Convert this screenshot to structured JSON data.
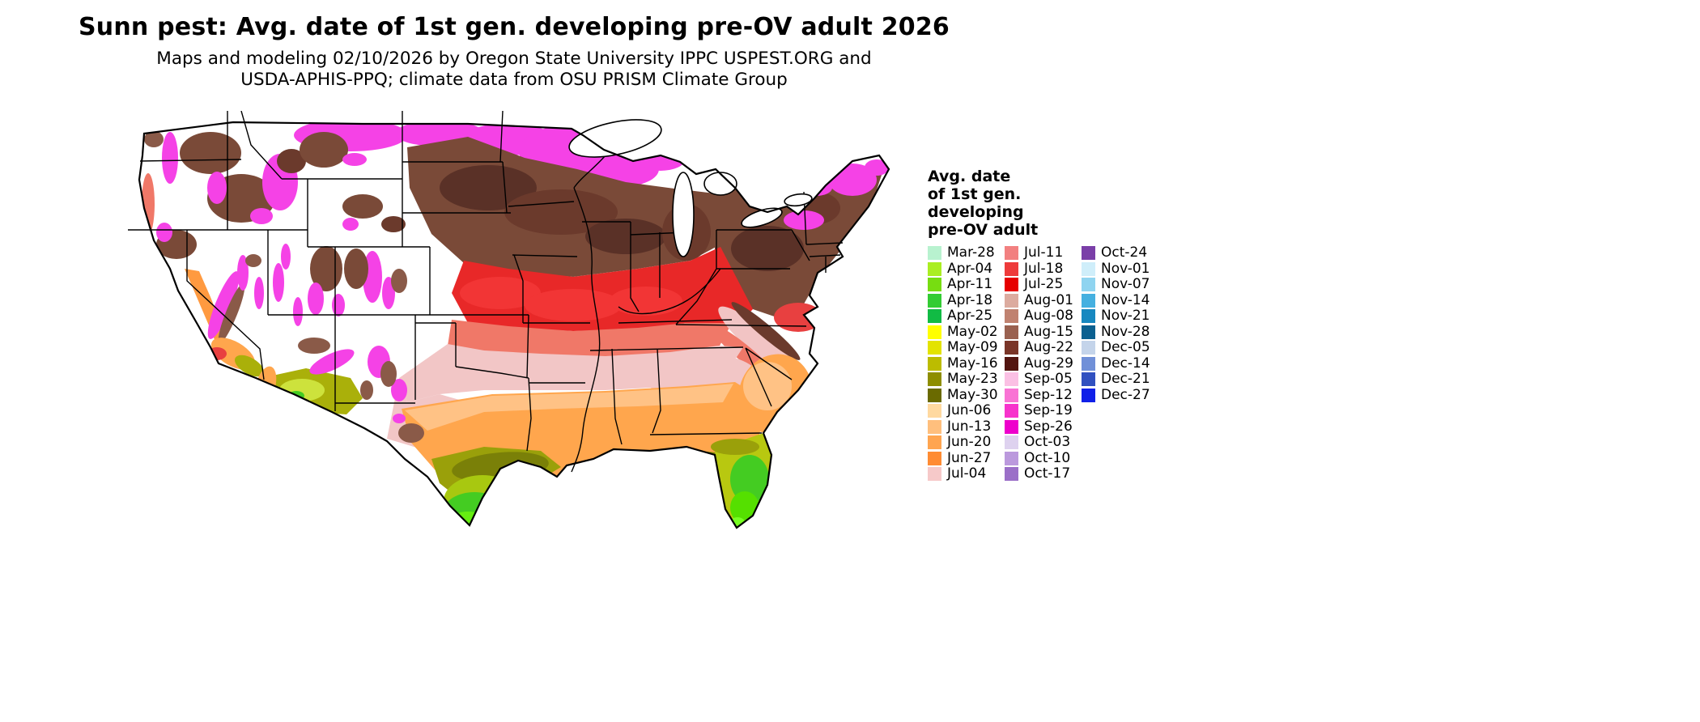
{
  "title": "Sunn pest: Avg. date of 1st gen. developing pre-OV adult 2026",
  "subtitle_line1": "Maps and modeling 02/10/2026 by Oregon State University IPPC USPEST.ORG and",
  "subtitle_line2": "USDA-APHIS-PPQ; climate data from OSU PRISM Climate Group",
  "legend": {
    "title_lines": [
      "Avg. date",
      "of 1st gen.",
      "developing",
      "pre-OV adult"
    ],
    "columns": [
      {
        "items": [
          {
            "label": "Mar-28",
            "color": "#b8f2cf"
          },
          {
            "label": "Apr-04",
            "color": "#aaee22"
          },
          {
            "label": "Apr-11",
            "color": "#77dd11"
          },
          {
            "label": "Apr-18",
            "color": "#33cc33"
          },
          {
            "label": "Apr-25",
            "color": "#11bb44"
          },
          {
            "label": "May-02",
            "color": "#ffff00"
          },
          {
            "label": "May-09",
            "color": "#e3e300"
          },
          {
            "label": "May-16",
            "color": "#bcbc00"
          },
          {
            "label": "May-23",
            "color": "#8e8e00"
          },
          {
            "label": "May-30",
            "color": "#6a6a00"
          },
          {
            "label": "Jun-06",
            "color": "#ffd9a0"
          },
          {
            "label": "Jun-13",
            "color": "#ffbf7d"
          },
          {
            "label": "Jun-20",
            "color": "#ffa550"
          },
          {
            "label": "Jun-27",
            "color": "#ff8c33"
          },
          {
            "label": "Jul-04",
            "color": "#f6c9c9"
          }
        ]
      },
      {
        "items": [
          {
            "label": "Jul-11",
            "color": "#f28080"
          },
          {
            "label": "Jul-18",
            "color": "#ee3b3b"
          },
          {
            "label": "Jul-25",
            "color": "#e60000"
          },
          {
            "label": "Aug-01",
            "color": "#dcab9f"
          },
          {
            "label": "Aug-08",
            "color": "#c08270"
          },
          {
            "label": "Aug-15",
            "color": "#9a6150"
          },
          {
            "label": "Aug-22",
            "color": "#7a3528"
          },
          {
            "label": "Aug-29",
            "color": "#531510"
          },
          {
            "label": "Sep-05",
            "color": "#fbc0e4"
          },
          {
            "label": "Sep-12",
            "color": "#f973d4"
          },
          {
            "label": "Sep-19",
            "color": "#f733cc"
          },
          {
            "label": "Sep-26",
            "color": "#ee00cc"
          },
          {
            "label": "Oct-03",
            "color": "#ded2ef"
          },
          {
            "label": "Oct-10",
            "color": "#bb99dd"
          },
          {
            "label": "Oct-17",
            "color": "#9b6fc8"
          }
        ]
      },
      {
        "items": [
          {
            "label": "Oct-24",
            "color": "#7a3fa8"
          },
          {
            "label": "Nov-01",
            "color": "#cfeefa"
          },
          {
            "label": "Nov-07",
            "color": "#8fd4f0"
          },
          {
            "label": "Nov-14",
            "color": "#45b0e0"
          },
          {
            "label": "Nov-21",
            "color": "#1788c0"
          },
          {
            "label": "Nov-28",
            "color": "#0b6090"
          },
          {
            "label": "Dec-05",
            "color": "#c4d4ea"
          },
          {
            "label": "Dec-14",
            "color": "#7090d8"
          },
          {
            "label": "Dec-21",
            "color": "#3050c0"
          },
          {
            "label": "Dec-27",
            "color": "#1020e8"
          }
        ]
      }
    ]
  }
}
